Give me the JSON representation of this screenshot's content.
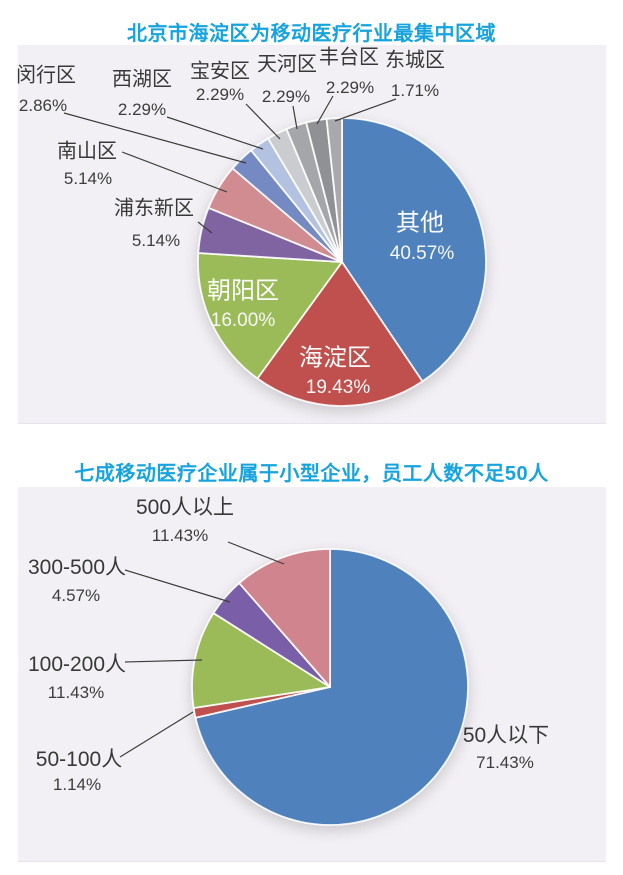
{
  "page": {
    "background": "#ffffff",
    "text_color": "#383838",
    "leader_line_color": "#3c3c3c"
  },
  "charts": [
    {
      "title": "北京市海淀区为移动医疗行业最集中区域",
      "title_color": "#17a3dd",
      "panel_bg": "#f2f0f4",
      "chart_data": {
        "type": "pie",
        "start_angle": "12-oclock",
        "direction": "clockwise",
        "inside_label_color": "#fdfdfd",
        "outside_label_color": "#383838",
        "slices": [
          {
            "label": "其他",
            "value": 40.57,
            "pct_label": "40.57%",
            "color": "#4f81bd",
            "label_placement": "inside"
          },
          {
            "label": "海淀区",
            "value": 19.43,
            "pct_label": "19.43%",
            "color": "#c0504d",
            "label_placement": "inside"
          },
          {
            "label": "朝阳区",
            "value": 16.0,
            "pct_label": "16.00%",
            "color": "#9bbb59",
            "label_placement": "inside"
          },
          {
            "label": "浦东新区",
            "value": 5.14,
            "pct_label": "5.14%",
            "color": "#8064a2",
            "label_placement": "outside"
          },
          {
            "label": "南山区",
            "value": 5.14,
            "pct_label": "5.14%",
            "color": "#d08c90",
            "label_placement": "outside"
          },
          {
            "label": "闵行区",
            "value": 2.86,
            "pct_label": "2.86%",
            "color": "#7589c2",
            "label_placement": "outside"
          },
          {
            "label": "西湖区",
            "value": 2.29,
            "pct_label": "2.29%",
            "color": "#b3c2e1",
            "label_placement": "outside"
          },
          {
            "label": "宝安区",
            "value": 2.29,
            "pct_label": "2.29%",
            "color": "#cbcccf",
            "label_placement": "outside"
          },
          {
            "label": "天河区",
            "value": 2.29,
            "pct_label": "2.29%",
            "color": "#a5a6aa",
            "label_placement": "outside"
          },
          {
            "label": "丰台区",
            "value": 2.29,
            "pct_label": "2.29%",
            "color": "#8f9194",
            "label_placement": "outside"
          },
          {
            "label": "东城区",
            "value": 1.71,
            "pct_label": "1.71%",
            "color": "#a8a9ac",
            "label_placement": "outside"
          }
        ]
      }
    },
    {
      "title": "七成移动医疗企业属于小型企业，员工人数不足50人",
      "title_color": "#17a3dd",
      "panel_bg": "#f2f0f4",
      "chart_data": {
        "type": "pie",
        "start_angle": "12-oclock",
        "direction": "clockwise",
        "inside_label_color": "#fdfdfd",
        "outside_label_color": "#383838",
        "slices": [
          {
            "label": "50人以下",
            "value": 71.43,
            "pct_label": "71.43%",
            "color": "#4f81bd",
            "label_placement": "outside"
          },
          {
            "label": "50-100人",
            "value": 1.14,
            "pct_label": "1.14%",
            "color": "#c0504d",
            "label_placement": "outside"
          },
          {
            "label": "100-200人",
            "value": 11.43,
            "pct_label": "11.43%",
            "color": "#9bbb59",
            "label_placement": "outside"
          },
          {
            "label": "300-500人",
            "value": 4.57,
            "pct_label": "4.57%",
            "color": "#7a5ea7",
            "label_placement": "outside"
          },
          {
            "label": "500人以上",
            "value": 11.43,
            "pct_label": "11.43%",
            "color": "#d0858e",
            "label_placement": "outside"
          }
        ]
      }
    }
  ]
}
